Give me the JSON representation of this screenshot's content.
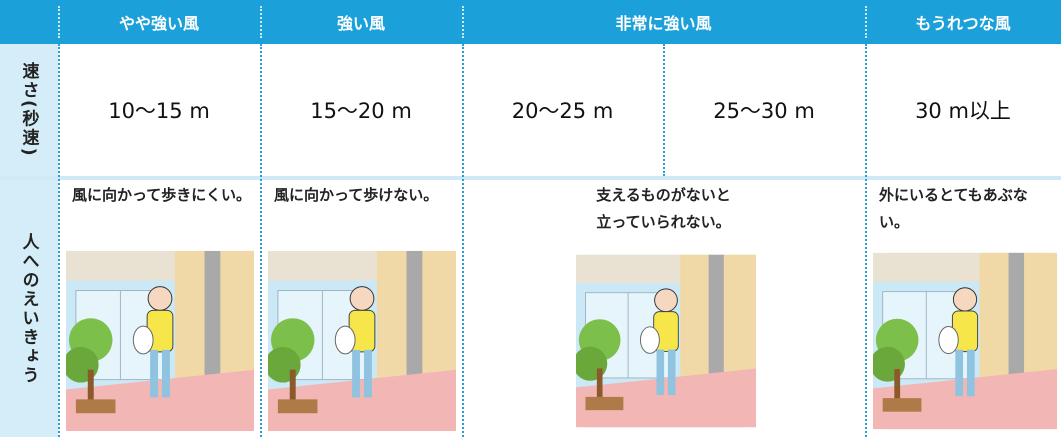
{
  "header": {
    "columns": [
      "やや強い風",
      "強い風",
      "非常に強い風",
      "もうれつな風"
    ]
  },
  "speed_row": {
    "label": "速さ(秒速)",
    "values": [
      "10〜15 m",
      "15〜20 m",
      "20〜25 m",
      "25〜30 m",
      "30 m以上"
    ]
  },
  "effect_row": {
    "label": "人へのえいきょう",
    "texts": [
      [
        "風に向かって歩きにくい。"
      ],
      [
        "風に向かって歩けない。"
      ],
      [
        "支えるものがないと",
        "立っていられない。"
      ],
      [
        "外にいるとてもあぶない。"
      ]
    ]
  }
}
